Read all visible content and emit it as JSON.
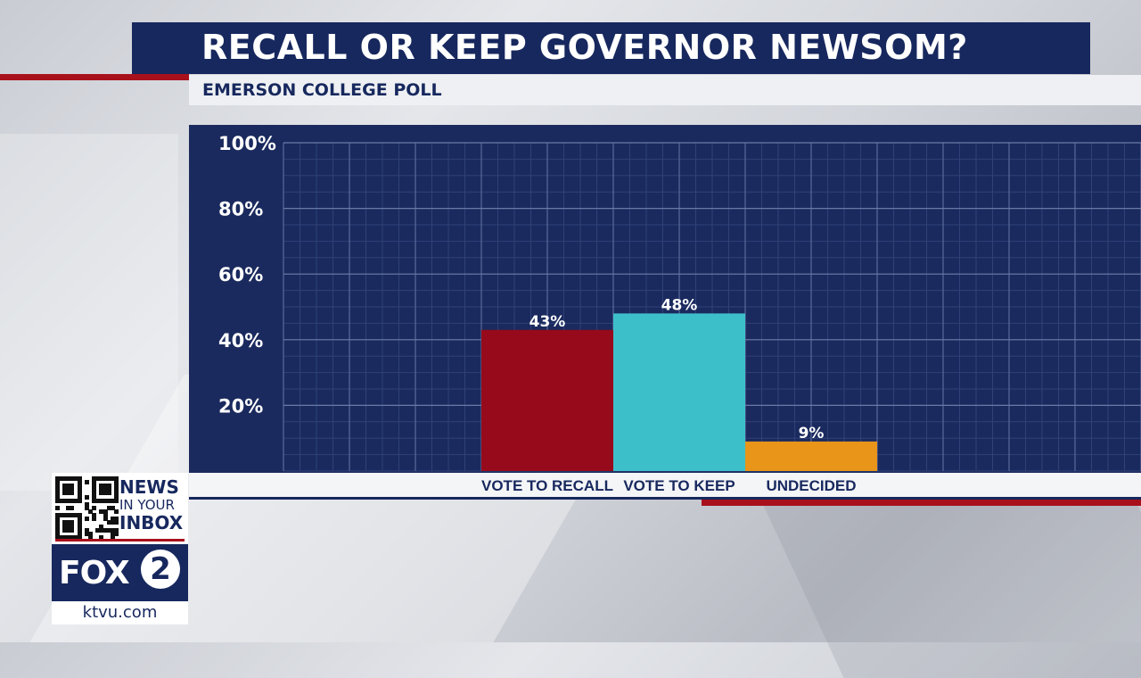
{
  "header": {
    "title": "RECALL OR KEEP GOVERNOR NEWSOM?",
    "subtitle": "EMERSON COLLEGE POLL"
  },
  "chart_data": {
    "type": "bar",
    "categories": [
      "VOTE TO RECALL",
      "VOTE TO KEEP",
      "UNDECIDED"
    ],
    "values": [
      43,
      48,
      9
    ],
    "data_labels": [
      "43%",
      "48%",
      "9%"
    ],
    "colors": [
      "#960a1c",
      "#3dbfc9",
      "#e8951a"
    ],
    "y_ticks": [
      20,
      40,
      60,
      80,
      100
    ],
    "y_tick_labels": [
      "20%",
      "40%",
      "60%",
      "80%",
      "100%"
    ],
    "ylim": [
      0,
      100
    ],
    "grid": true,
    "title": "RECALL OR KEEP GOVERNOR NEWSOM?",
    "xlabel": "",
    "ylabel": ""
  },
  "branding": {
    "news_line1": "NEWS",
    "news_line2": "IN YOUR",
    "news_line3": "INBOX",
    "station": "FOX",
    "channel": "2",
    "website": "ktvu.com"
  },
  "colors": {
    "navy": "#17285e",
    "red": "#a8111c",
    "panel": "#1a2a5e"
  }
}
